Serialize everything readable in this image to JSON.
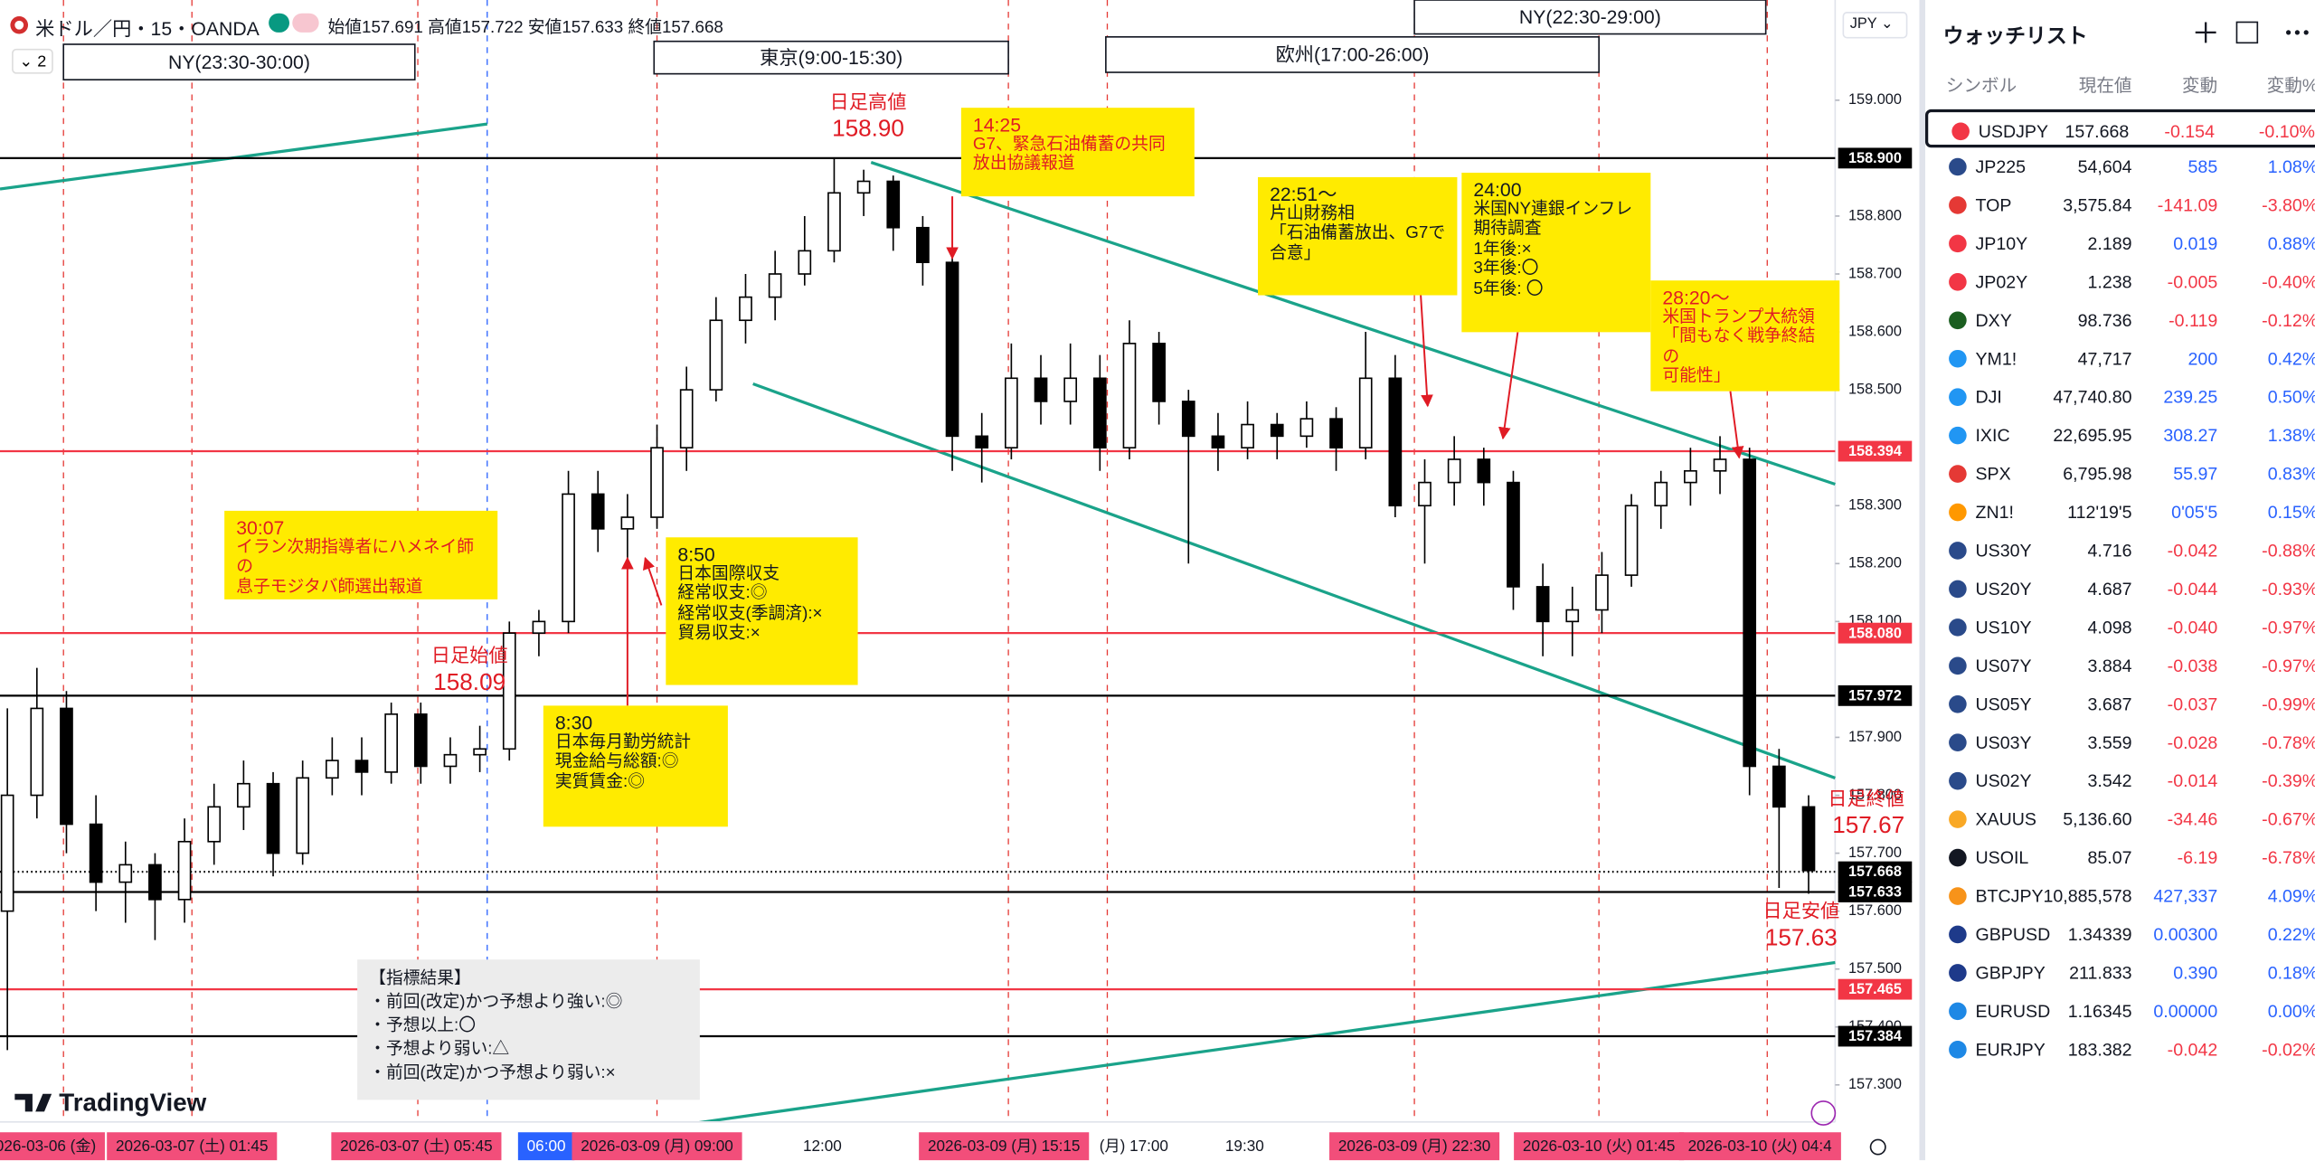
{
  "header": {
    "symbol": "米ドル／円・15・OANDA",
    "collapse": "2",
    "open_label": "始値",
    "open": "157.691",
    "high_label": "高値",
    "high": "157.722",
    "low_label": "安値",
    "low": "157.633",
    "close_label": "終値",
    "close": "157.668"
  },
  "sessions": [
    "NY(23:30-30:00)",
    "東京(9:00-15:30)",
    "欧州(17:00-26:00)",
    "NY(22:30-29:00)"
  ],
  "price_marks": [
    [
      "日足高値",
      "158.90"
    ],
    [
      "日足始値",
      "158.09"
    ],
    [
      "日足終値",
      "157.67"
    ],
    [
      "日足安値",
      "157.63"
    ]
  ],
  "annotations": [
    {
      "lines": [
        "30:07",
        "イラン次期指導者にハメネイ師の",
        "息子モジタバ師選出報道"
      ]
    },
    {
      "lines": [
        "8:50",
        "日本国際収支",
        "経常収支:◎",
        "経常収支(季調済):×",
        "貿易収支:×"
      ]
    },
    {
      "lines": [
        "8:30",
        "日本毎月勤労統計",
        "現金給与総額:◎",
        "実質賃金:◎"
      ]
    },
    {
      "lines": [
        "14:25",
        "G7、緊急石油備蓄の共同",
        "放出協議報道"
      ]
    },
    {
      "lines": [
        "22:51〜",
        "片山財務相",
        "「石油備蓄放出、G7で",
        "合意」"
      ]
    },
    {
      "lines": [
        "24:00",
        "米国NY連銀インフレ",
        "期待調査",
        "1年後:×",
        "3年後:〇",
        "5年後: 〇"
      ]
    },
    {
      "lines": [
        "28:20〜",
        "米国トランプ大統領",
        "「間もなく戦争終結の",
        "可能性」"
      ]
    },
    {
      "lines": [
        "【指標結果】",
        "・前回(改定)かつ予想より強い:◎",
        "・予想以上:〇",
        "・予想より弱い:△",
        "・前回(改定)かつ予想より弱い:×"
      ]
    }
  ],
  "logo": "TradingView",
  "price_axis_currency": "JPY",
  "chart_data": {
    "type": "candlestick",
    "ylim": [
      157.236,
      159.173
    ],
    "yticks": [
      {
        "value": 159.0,
        "label": "159.000"
      },
      {
        "value": 158.8,
        "label": "158.800"
      },
      {
        "value": 158.7,
        "label": "158.700"
      },
      {
        "value": 158.6,
        "label": "158.600"
      },
      {
        "value": 158.5,
        "label": "158.500"
      },
      {
        "value": 158.3,
        "label": "158.300"
      },
      {
        "value": 158.2,
        "label": "158.200"
      },
      {
        "value": 158.1,
        "label": "158.100"
      },
      {
        "value": 157.9,
        "label": "157.900"
      },
      {
        "value": 157.8,
        "label": "157.800"
      },
      {
        "value": 157.7,
        "label": "157.700"
      },
      {
        "value": 157.6,
        "label": "157.600"
      },
      {
        "value": 157.5,
        "label": "157.500"
      },
      {
        "value": 157.4,
        "label": "157.400"
      },
      {
        "value": 157.3,
        "label": "157.300"
      }
    ],
    "grid": false,
    "colors": {
      "up": "#ffffff",
      "down": "#000000"
    },
    "levels": [
      {
        "value": 158.9,
        "label": "158.900",
        "color": "#000000"
      },
      {
        "value": 158.394,
        "label": "158.394",
        "color": "#f23645"
      },
      {
        "value": 158.08,
        "label": "158.080",
        "color": "#f23645"
      },
      {
        "value": 157.972,
        "label": "157.972",
        "color": "#000000"
      },
      {
        "value": 157.668,
        "label": "157.668",
        "color": "#000000"
      },
      {
        "value": 157.633,
        "label": "157.633",
        "color": "#000000"
      },
      {
        "value": 157.465,
        "label": "157.465",
        "color": "#f23645"
      },
      {
        "value": 157.384,
        "label": "157.384",
        "color": "#000000"
      }
    ],
    "xtick_labels": [
      "2026-03-06 (金)",
      "2026-03-07 (土)  01:45",
      "2026-03-07 (土)  05:45",
      "06:00",
      "2026-03-09 (月)  09:00",
      "12:00",
      "2026-03-09 (月)  15:15",
      "(月)  17:00",
      "19:30",
      "2026-03-09 (月)  22:30",
      "2026-03-10 (火)  01:45",
      "2026-03-10 (火)  04:4"
    ],
    "ohlc": [
      [
        157.6,
        157.95,
        157.36,
        157.8
      ],
      [
        157.8,
        158.02,
        157.76,
        157.95
      ],
      [
        157.95,
        157.98,
        157.7,
        157.75
      ],
      [
        157.75,
        157.8,
        157.6,
        157.65
      ],
      [
        157.65,
        157.72,
        157.58,
        157.68
      ],
      [
        157.68,
        157.7,
        157.55,
        157.62
      ],
      [
        157.62,
        157.76,
        157.58,
        157.72
      ],
      [
        157.72,
        157.82,
        157.68,
        157.78
      ],
      [
        157.78,
        157.86,
        157.74,
        157.82
      ],
      [
        157.82,
        157.84,
        157.66,
        157.7
      ],
      [
        157.7,
        157.86,
        157.68,
        157.83
      ],
      [
        157.83,
        157.9,
        157.8,
        157.86
      ],
      [
        157.86,
        157.9,
        157.8,
        157.84
      ],
      [
        157.84,
        157.96,
        157.82,
        157.94
      ],
      [
        157.94,
        157.96,
        157.82,
        157.85
      ],
      [
        157.85,
        157.9,
        157.82,
        157.87
      ],
      [
        157.87,
        157.92,
        157.84,
        157.88
      ],
      [
        157.88,
        158.1,
        157.86,
        158.08
      ],
      [
        158.08,
        158.12,
        158.04,
        158.1
      ],
      [
        158.1,
        158.36,
        158.08,
        158.32
      ],
      [
        158.32,
        158.36,
        158.22,
        158.26
      ],
      [
        158.26,
        158.32,
        158.2,
        158.28
      ],
      [
        158.28,
        158.44,
        158.26,
        158.4
      ],
      [
        158.4,
        158.54,
        158.36,
        158.5
      ],
      [
        158.5,
        158.66,
        158.48,
        158.62
      ],
      [
        158.62,
        158.7,
        158.58,
        158.66
      ],
      [
        158.66,
        158.74,
        158.62,
        158.7
      ],
      [
        158.7,
        158.8,
        158.68,
        158.74
      ],
      [
        158.74,
        158.9,
        158.72,
        158.84
      ],
      [
        158.84,
        158.88,
        158.8,
        158.86
      ],
      [
        158.86,
        158.87,
        158.74,
        158.78
      ],
      [
        158.78,
        158.8,
        158.68,
        158.72
      ],
      [
        158.72,
        158.74,
        158.36,
        158.42
      ],
      [
        158.42,
        158.46,
        158.34,
        158.4
      ],
      [
        158.4,
        158.58,
        158.38,
        158.52
      ],
      [
        158.52,
        158.56,
        158.44,
        158.48
      ],
      [
        158.48,
        158.58,
        158.44,
        158.52
      ],
      [
        158.52,
        158.56,
        158.36,
        158.4
      ],
      [
        158.4,
        158.62,
        158.38,
        158.58
      ],
      [
        158.58,
        158.6,
        158.44,
        158.48
      ],
      [
        158.48,
        158.5,
        158.2,
        158.42
      ],
      [
        158.42,
        158.46,
        158.36,
        158.4
      ],
      [
        158.4,
        158.48,
        158.38,
        158.44
      ],
      [
        158.44,
        158.46,
        158.38,
        158.42
      ],
      [
        158.42,
        158.48,
        158.4,
        158.45
      ],
      [
        158.45,
        158.47,
        158.36,
        158.4
      ],
      [
        158.4,
        158.6,
        158.38,
        158.52
      ],
      [
        158.52,
        158.56,
        158.28,
        158.3
      ],
      [
        158.3,
        158.38,
        158.2,
        158.34
      ],
      [
        158.34,
        158.42,
        158.3,
        158.38
      ],
      [
        158.38,
        158.4,
        158.3,
        158.34
      ],
      [
        158.34,
        158.36,
        158.12,
        158.16
      ],
      [
        158.16,
        158.2,
        158.04,
        158.1
      ],
      [
        158.1,
        158.16,
        158.04,
        158.12
      ],
      [
        158.12,
        158.22,
        158.08,
        158.18
      ],
      [
        158.18,
        158.32,
        158.16,
        158.3
      ],
      [
        158.3,
        158.36,
        158.26,
        158.34
      ],
      [
        158.34,
        158.4,
        158.3,
        158.36
      ],
      [
        158.36,
        158.42,
        158.32,
        158.38
      ],
      [
        158.38,
        158.4,
        157.8,
        157.85
      ],
      [
        157.85,
        157.88,
        157.64,
        157.78
      ],
      [
        157.78,
        157.8,
        157.63,
        157.67
      ]
    ]
  },
  "watchlist": {
    "title": "ウォッチリスト",
    "columns": [
      "シンボル",
      "現在値",
      "変動",
      "変動%"
    ],
    "rows": [
      [
        "USDJPY",
        "157.668",
        "-0.154",
        "-0.10%"
      ],
      [
        "JP225",
        "54,604",
        "585",
        "1.08%"
      ],
      [
        "TOP",
        "3,575.84",
        "-141.09",
        "-3.80%"
      ],
      [
        "JP10Y",
        "2.189",
        "0.019",
        "0.88%"
      ],
      [
        "JP02Y",
        "1.238",
        "-0.005",
        "-0.40%"
      ],
      [
        "DXY",
        "98.736",
        "-0.119",
        "-0.12%"
      ],
      [
        "YM1!",
        "47,717",
        "200",
        "0.42%"
      ],
      [
        "DJI",
        "47,740.80",
        "239.25",
        "0.50%"
      ],
      [
        "IXIC",
        "22,695.95",
        "308.27",
        "1.38%"
      ],
      [
        "SPX",
        "6,795.98",
        "55.97",
        "0.83%"
      ],
      [
        "ZN1!",
        "112'19'5",
        "0'05'5",
        "0.15%"
      ],
      [
        "US30Y",
        "4.716",
        "-0.042",
        "-0.88%"
      ],
      [
        "US20Y",
        "4.687",
        "-0.044",
        "-0.93%"
      ],
      [
        "US10Y",
        "4.098",
        "-0.040",
        "-0.97%"
      ],
      [
        "US07Y",
        "3.884",
        "-0.038",
        "-0.97%"
      ],
      [
        "US05Y",
        "3.687",
        "-0.037",
        "-0.99%"
      ],
      [
        "US03Y",
        "3.559",
        "-0.028",
        "-0.78%"
      ],
      [
        "US02Y",
        "3.542",
        "-0.014",
        "-0.39%"
      ],
      [
        "XAUUS",
        "5,136.60",
        "-34.46",
        "-0.67%"
      ],
      [
        "USOIL",
        "85.07",
        "-6.19",
        "-6.78%"
      ],
      [
        "BTCJPY",
        "10,885,578",
        "427,337",
        "4.09%"
      ],
      [
        "GBPUSD",
        "1.34339",
        "0.00300",
        "0.22%"
      ],
      [
        "GBPJPY",
        "211.833",
        "0.390",
        "0.18%"
      ],
      [
        "EURUSD",
        "1.16345",
        "0.00000",
        "0.00%"
      ],
      [
        "EURJPY",
        "183.382",
        "-0.042",
        "-0.02%"
      ]
    ]
  }
}
